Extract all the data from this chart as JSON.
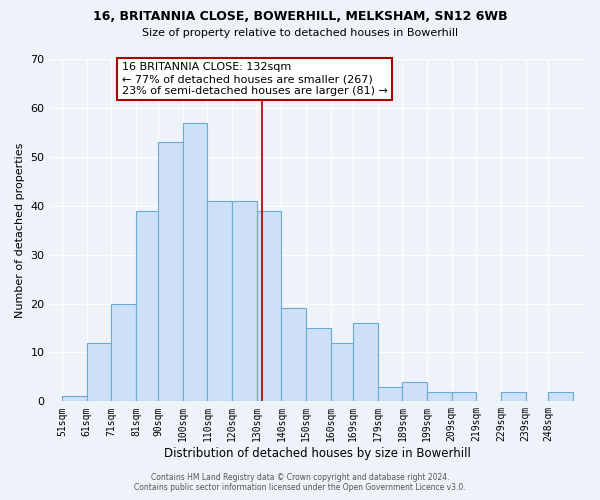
{
  "title1": "16, BRITANNIA CLOSE, BOWERHILL, MELKSHAM, SN12 6WB",
  "title2": "Size of property relative to detached houses in Bowerhill",
  "xlabel": "Distribution of detached houses by size in Bowerhill",
  "ylabel": "Number of detached properties",
  "bar_labels": [
    "51sqm",
    "61sqm",
    "71sqm",
    "81sqm",
    "90sqm",
    "100sqm",
    "110sqm",
    "120sqm",
    "130sqm",
    "140sqm",
    "150sqm",
    "160sqm",
    "169sqm",
    "179sqm",
    "189sqm",
    "199sqm",
    "209sqm",
    "219sqm",
    "229sqm",
    "239sqm",
    "248sqm"
  ],
  "bar_heights": [
    1,
    12,
    20,
    39,
    53,
    57,
    41,
    41,
    39,
    19,
    15,
    12,
    16,
    3,
    4,
    2,
    2,
    0,
    2,
    0,
    2
  ],
  "bar_left_edges": [
    51,
    61,
    71,
    81,
    90,
    100,
    110,
    120,
    130,
    140,
    150,
    160,
    169,
    179,
    189,
    199,
    209,
    219,
    229,
    239,
    248
  ],
  "bar_widths": [
    10,
    10,
    10,
    9,
    10,
    10,
    10,
    10,
    10,
    10,
    10,
    9,
    10,
    10,
    10,
    10,
    10,
    10,
    10,
    9,
    10
  ],
  "bar_color": "#cde0f5",
  "bar_edge_color": "#6aaad4",
  "property_line_x": 132,
  "xlim_left": 46,
  "xlim_right": 263,
  "ylim": [
    0,
    70
  ],
  "yticks": [
    0,
    10,
    20,
    30,
    40,
    50,
    60,
    70
  ],
  "annotation_title": "16 BRITANNIA CLOSE: 132sqm",
  "annotation_line1": "← 77% of detached houses are smaller (267)",
  "annotation_line2": "23% of semi-detached houses are larger (81) →",
  "annotation_box_color": "#ffffff",
  "annotation_box_edge": "#aa0000",
  "footer1": "Contains HM Land Registry data © Crown copyright and database right 2024.",
  "footer2": "Contains public sector information licensed under the Open Government Licence v3.0.",
  "background_color": "#eef2f9"
}
